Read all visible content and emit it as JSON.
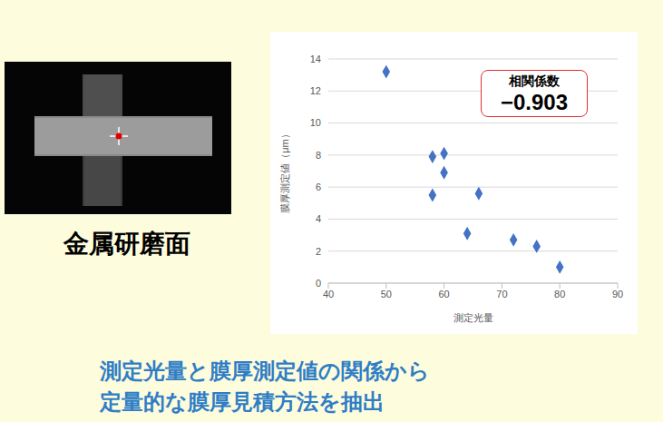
{
  "slide": {
    "image_label": "金属研磨面",
    "caption": [
      "測定光量と膜厚測定値の関係から",
      "定量的な膜厚見積方法を抽出"
    ]
  },
  "chart_data": {
    "type": "scatter",
    "x_label": "測定光量",
    "y_label": "膜厚測定値（μm）",
    "annotation_title": "相関係数",
    "annotation_value": "−0.903",
    "x": [
      50,
      58,
      58,
      60,
      60,
      64,
      66,
      72,
      76,
      80
    ],
    "values": [
      13.2,
      7.9,
      5.5,
      8.1,
      6.9,
      3.1,
      5.6,
      2.7,
      2.3,
      1.0
    ],
    "color": "#4472c4",
    "marker": "diamond",
    "xlim": [
      40,
      90
    ],
    "xticks": [
      40,
      50,
      60,
      70,
      80,
      90
    ],
    "ylim": [
      0,
      14
    ],
    "yticks": [
      0,
      2,
      4,
      6,
      8,
      10,
      12,
      14
    ],
    "grid": true
  }
}
